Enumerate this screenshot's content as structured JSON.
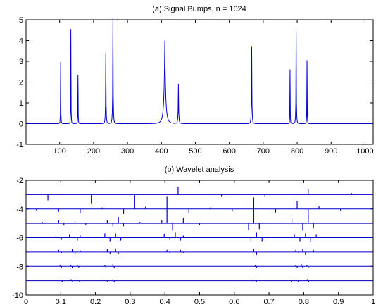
{
  "chart_data": [
    {
      "type": "line",
      "title": "(a) Signal Bumps, n = 1024",
      "xlabel": "",
      "ylabel": "",
      "xlim": [
        1,
        1024
      ],
      "ylim": [
        -1,
        5
      ],
      "xticks": [
        100,
        200,
        300,
        400,
        500,
        600,
        700,
        800,
        900,
        1000
      ],
      "yticks": [
        -1,
        0,
        1,
        2,
        3,
        4,
        5
      ],
      "grid": false,
      "series": [
        {
          "color": "#0000cc",
          "bumps": [
            {
              "x": 103,
              "height": 2.97,
              "width": 1.5
            },
            {
              "x": 133,
              "height": 4.55,
              "width": 1.5
            },
            {
              "x": 154,
              "height": 2.35,
              "width": 1.5
            },
            {
              "x": 236,
              "height": 3.4,
              "width": 2.5
            },
            {
              "x": 257,
              "height": 5.1,
              "width": 2.5
            },
            {
              "x": 410,
              "height": 4.0,
              "width": 9
            },
            {
              "x": 450,
              "height": 1.9,
              "width": 3
            },
            {
              "x": 666,
              "height": 3.7,
              "width": 2.5
            },
            {
              "x": 779,
              "height": 2.6,
              "width": 1.5
            },
            {
              "x": 797,
              "height": 4.45,
              "width": 2.2
            },
            {
              "x": 829,
              "height": 3.05,
              "width": 1.5
            }
          ]
        }
      ]
    },
    {
      "type": "bar",
      "title": "(b) Wavelet analysis",
      "xlabel": "",
      "ylabel": "",
      "xlim": [
        0,
        1
      ],
      "ylim": [
        -10,
        -2
      ],
      "xticks": [
        "0",
        "0.1",
        "0.2",
        "0.3",
        "0.4",
        "0.5",
        "0.6",
        "0.7",
        "0.8",
        "0.9",
        "1"
      ],
      "yticks": [
        -10,
        -8,
        -6,
        -4,
        -2
      ],
      "grid": false,
      "color": "#0000cc",
      "levels": [
        {
          "baseline": -3,
          "spikes": [
            [
              0.063,
              -0.4
            ],
            [
              0.188,
              -0.65
            ],
            [
              0.313,
              -1.0
            ],
            [
              0.438,
              0.55
            ],
            [
              0.563,
              -0.15
            ],
            [
              0.688,
              -0.15
            ],
            [
              0.813,
              0.4
            ],
            [
              0.938,
              0.1
            ]
          ]
        },
        {
          "baseline": -4,
          "spikes": [
            [
              0.03,
              -0.1
            ],
            [
              0.094,
              -0.2
            ],
            [
              0.156,
              -0.3
            ],
            [
              0.219,
              0.1
            ],
            [
              0.281,
              -0.35
            ],
            [
              0.344,
              0.15
            ],
            [
              0.406,
              -0.95
            ],
            [
              0.406,
              0.85
            ],
            [
              0.469,
              -0.3
            ],
            [
              0.531,
              0.1
            ],
            [
              0.594,
              -0.15
            ],
            [
              0.656,
              -0.6
            ],
            [
              0.656,
              0.8
            ],
            [
              0.719,
              -0.25
            ],
            [
              0.781,
              0.55
            ],
            [
              0.813,
              -0.7
            ],
            [
              0.844,
              0.2
            ],
            [
              0.906,
              -0.1
            ]
          ]
        },
        {
          "baseline": -5,
          "spikes": [
            [
              0.047,
              0.1
            ],
            [
              0.094,
              0.25
            ],
            [
              0.109,
              -0.15
            ],
            [
              0.141,
              0.15
            ],
            [
              0.172,
              -0.15
            ],
            [
              0.234,
              0.25
            ],
            [
              0.25,
              -0.2
            ],
            [
              0.266,
              0.45
            ],
            [
              0.281,
              -0.2
            ],
            [
              0.328,
              0.1
            ],
            [
              0.391,
              0.25
            ],
            [
              0.422,
              -0.5
            ],
            [
              0.453,
              0.4
            ],
            [
              0.5,
              -0.1
            ],
            [
              0.641,
              -0.45
            ],
            [
              0.656,
              0.35
            ],
            [
              0.672,
              -0.4
            ],
            [
              0.766,
              0.3
            ],
            [
              0.797,
              -0.5
            ],
            [
              0.813,
              0.6
            ],
            [
              0.828,
              -0.35
            ]
          ]
        },
        {
          "baseline": -6,
          "spikes": [
            [
              0.086,
              0.1
            ],
            [
              0.102,
              -0.15
            ],
            [
              0.125,
              0.2
            ],
            [
              0.148,
              -0.2
            ],
            [
              0.156,
              0.15
            ],
            [
              0.227,
              0.3
            ],
            [
              0.242,
              -0.25
            ],
            [
              0.258,
              0.3
            ],
            [
              0.273,
              -0.2
            ],
            [
              0.398,
              0.25
            ],
            [
              0.414,
              -0.15
            ],
            [
              0.43,
              0.35
            ],
            [
              0.445,
              -0.2
            ],
            [
              0.453,
              0.15
            ],
            [
              0.648,
              -0.3
            ],
            [
              0.664,
              0.35
            ],
            [
              0.68,
              -0.25
            ],
            [
              0.773,
              0.2
            ],
            [
              0.789,
              -0.25
            ],
            [
              0.805,
              0.3
            ],
            [
              0.82,
              -0.3
            ],
            [
              0.836,
              0.2
            ]
          ]
        },
        {
          "baseline": -7,
          "spikes": [
            [
              0.094,
              0.15
            ],
            [
              0.102,
              -0.1
            ],
            [
              0.133,
              0.2
            ],
            [
              0.141,
              -0.15
            ],
            [
              0.156,
              0.12
            ],
            [
              0.234,
              0.2
            ],
            [
              0.242,
              -0.15
            ],
            [
              0.258,
              0.25
            ],
            [
              0.266,
              -0.15
            ],
            [
              0.406,
              0.15
            ],
            [
              0.414,
              -0.1
            ],
            [
              0.445,
              0.15
            ],
            [
              0.453,
              -0.1
            ],
            [
              0.656,
              0.2
            ],
            [
              0.664,
              -0.2
            ],
            [
              0.777,
              0.15
            ],
            [
              0.785,
              -0.1
            ],
            [
              0.797,
              0.2
            ],
            [
              0.805,
              -0.2
            ],
            [
              0.828,
              0.15
            ]
          ]
        },
        {
          "baseline": -8,
          "spikes": [
            [
              0.098,
              0.12
            ],
            [
              0.102,
              -0.1
            ],
            [
              0.129,
              0.12
            ],
            [
              0.133,
              -0.1
            ],
            [
              0.148,
              0.1
            ],
            [
              0.152,
              -0.08
            ],
            [
              0.227,
              0.1
            ],
            [
              0.23,
              -0.1
            ],
            [
              0.25,
              0.15
            ],
            [
              0.254,
              -0.12
            ],
            [
              0.66,
              0.1
            ],
            [
              0.664,
              -0.1
            ],
            [
              0.777,
              0.1
            ],
            [
              0.781,
              -0.1
            ],
            [
              0.793,
              0.15
            ],
            [
              0.797,
              -0.12
            ],
            [
              0.809,
              0.1
            ],
            [
              0.813,
              -0.1
            ]
          ]
        },
        {
          "baseline": -9,
          "spikes": [
            [
              0.1,
              0.08
            ],
            [
              0.104,
              -0.08
            ],
            [
              0.13,
              0.1
            ],
            [
              0.134,
              -0.08
            ],
            [
              0.15,
              0.06
            ],
            [
              0.154,
              -0.06
            ],
            [
              0.23,
              0.08
            ],
            [
              0.234,
              -0.06
            ],
            [
              0.25,
              0.1
            ],
            [
              0.254,
              -0.08
            ],
            [
              0.65,
              0.06
            ],
            [
              0.654,
              -0.06
            ],
            [
              0.66,
              0.08
            ],
            [
              0.664,
              -0.06
            ],
            [
              0.76,
              0.06
            ],
            [
              0.764,
              -0.06
            ],
            [
              0.78,
              0.08
            ],
            [
              0.784,
              -0.06
            ],
            [
              0.81,
              0.1
            ],
            [
              0.814,
              -0.08
            ]
          ]
        }
      ]
    }
  ]
}
